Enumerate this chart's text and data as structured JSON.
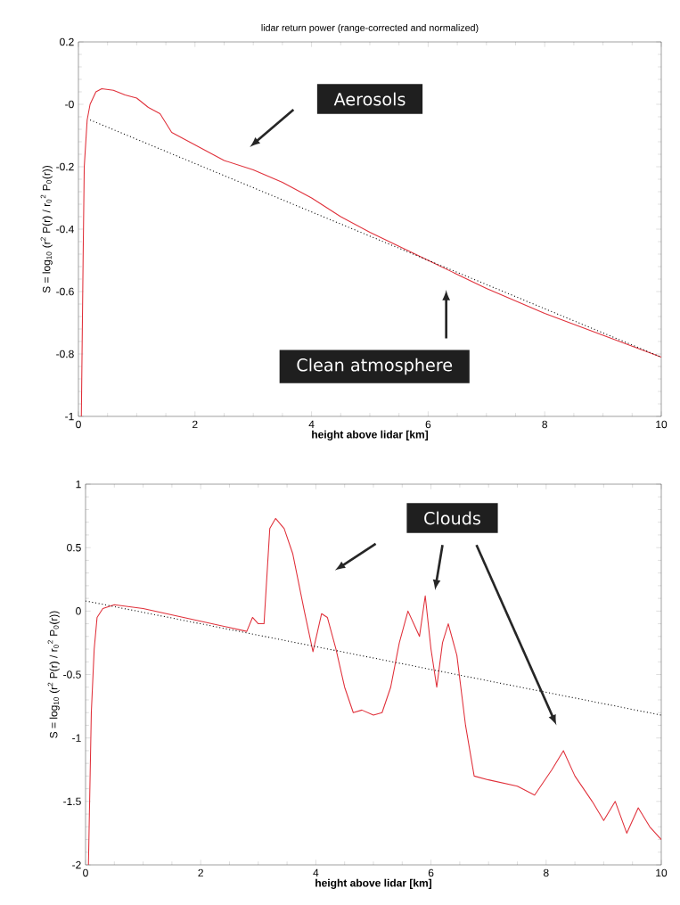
{
  "chart_data": [
    {
      "type": "line",
      "title": "lidar return power (range-corrected and normalized)",
      "xlabel": "height above lidar [km]",
      "ylabel": "S = log$_{10}$ (r$^{2}$ P(r) / r$_{0}$$^{2}$ P$_{0}$(r))",
      "xlim": [
        0,
        10
      ],
      "ylim": [
        -1,
        0.2
      ],
      "xticks": [
        0,
        2,
        4,
        6,
        8,
        10
      ],
      "yticks": [
        -1,
        -0.8,
        -0.6,
        -0.4,
        -0.2,
        {
          "value": 0,
          "label": "-0"
        },
        0.2
      ],
      "line_style": "solid",
      "series": [
        {
          "color": "#e0303a",
          "x": [
            0.05,
            0.08,
            0.1,
            0.15,
            0.2,
            0.3,
            0.4,
            0.6,
            0.8,
            1.0,
            1.2,
            1.4,
            1.5,
            1.6,
            2.0,
            2.5,
            3.0,
            3.5,
            4.0,
            4.5,
            5.0,
            6.0,
            7.0,
            8.0,
            9.0,
            10.0
          ],
          "values": [
            -1.0,
            -0.5,
            -0.2,
            -0.05,
            0.0,
            0.04,
            0.05,
            0.045,
            0.03,
            0.02,
            -0.01,
            -0.03,
            -0.06,
            -0.09,
            -0.13,
            -0.18,
            -0.21,
            -0.25,
            -0.3,
            -0.36,
            -0.41,
            -0.5,
            -0.59,
            -0.67,
            -0.74,
            -0.81
          ]
        },
        {
          "color": "#000000",
          "line_style": "dotted",
          "x": [
            0.2,
            10
          ],
          "values": [
            -0.05,
            -0.81
          ]
        }
      ],
      "annotations": [
        "Aerosols",
        "Clean atmosphere"
      ]
    },
    {
      "type": "line",
      "xlabel": "height above lidar [km]",
      "ylabel": "S = log$_{10}$ (r$^{2}$ P(r) / r$_{0}$$^{2}$ P$_{0}$(r))",
      "xlim": [
        0,
        10
      ],
      "ylim": [
        -2,
        1
      ],
      "xticks": [
        0,
        2,
        4,
        6,
        8,
        10
      ],
      "yticks": [
        -2,
        -1.5,
        -1,
        -0.5,
        0,
        0.5,
        1
      ],
      "line_style": "solid",
      "series": [
        {
          "color": "#e0303a",
          "x": [
            0.05,
            0.1,
            0.15,
            0.2,
            0.3,
            0.5,
            1.0,
            2.0,
            2.8,
            2.9,
            3.0,
            3.1,
            3.2,
            3.3,
            3.45,
            3.6,
            3.8,
            3.95,
            4.1,
            4.2,
            4.35,
            4.5,
            4.65,
            4.8,
            5.0,
            5.15,
            5.3,
            5.45,
            5.6,
            5.7,
            5.8,
            5.9,
            6.0,
            6.1,
            6.2,
            6.3,
            6.45,
            6.6,
            6.75,
            7.0,
            7.5,
            7.8,
            8.1,
            8.3,
            8.5,
            8.8,
            9.0,
            9.2,
            9.4,
            9.6,
            9.8,
            10.0
          ],
          "values": [
            -2.0,
            -0.8,
            -0.3,
            -0.05,
            0.02,
            0.05,
            0.02,
            -0.08,
            -0.16,
            -0.05,
            -0.1,
            -0.1,
            0.65,
            0.73,
            0.65,
            0.45,
            0.0,
            -0.32,
            -0.02,
            -0.05,
            -0.3,
            -0.6,
            -0.8,
            -0.78,
            -0.82,
            -0.8,
            -0.6,
            -0.25,
            0.0,
            -0.1,
            -0.2,
            0.12,
            -0.3,
            -0.6,
            -0.25,
            -0.1,
            -0.35,
            -0.9,
            -1.3,
            -1.33,
            -1.38,
            -1.45,
            -1.25,
            -1.1,
            -1.3,
            -1.5,
            -1.65,
            -1.5,
            -1.75,
            -1.55,
            -1.7,
            -1.8
          ]
        },
        {
          "color": "#000000",
          "line_style": "dotted",
          "x": [
            0,
            10
          ],
          "values": [
            0.08,
            -0.82
          ]
        }
      ],
      "annotations": [
        "Clouds"
      ]
    }
  ]
}
